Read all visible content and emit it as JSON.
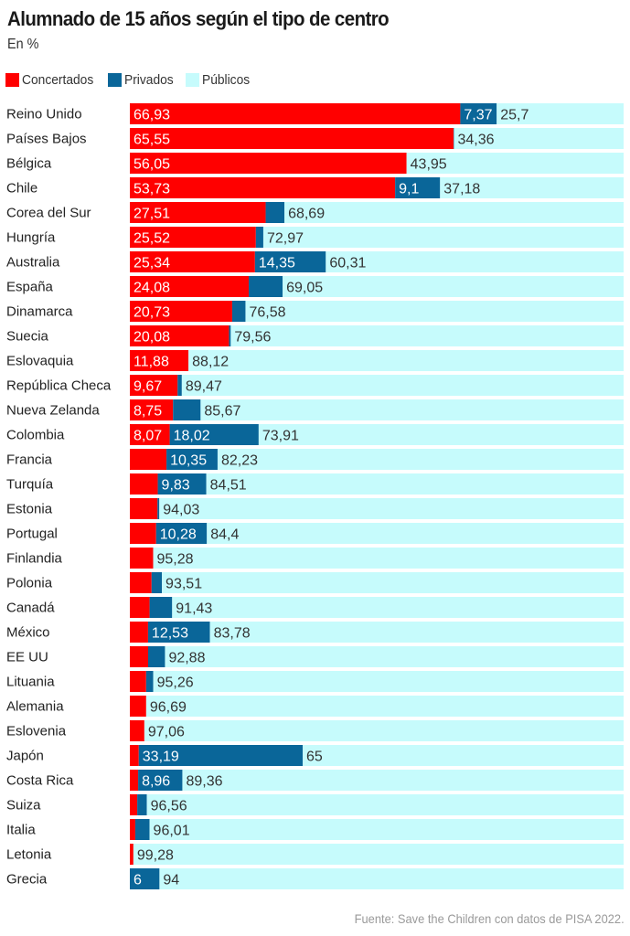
{
  "colors": {
    "concertados": "#ff0000",
    "privados": "#0a6699",
    "publicos": "#c6fbfc",
    "row_label": "#222222",
    "value_on_dark": "#ffffff",
    "value_on_light": "#333333"
  },
  "chart_data": {
    "type": "bar",
    "orientation": "horizontal",
    "stacked": true,
    "normalized_to": 100,
    "title": "Alumnado de 15 años según el tipo de centro",
    "subtitle": "En %",
    "xlabel": "",
    "ylabel": "",
    "xlim": [
      0,
      100
    ],
    "grid": false,
    "legend_position": "top-left",
    "source": "Fuente: Save the Children con datos de PISA 2022.",
    "categories": [
      "Reino Unido",
      "Países Bajos",
      "Bélgica",
      "Chile",
      "Corea del Sur",
      "Hungría",
      "Australia",
      "España",
      "Dinamarca",
      "Suecia",
      "Eslovaquia",
      "República Checa",
      "Nueva Zelanda",
      "Colombia",
      "Francia",
      "Turquía",
      "Estonia",
      "Portugal",
      "Finlandia",
      "Polonia",
      "Canadá",
      "México",
      "EE UU",
      "Lituania",
      "Alemania",
      "Eslovenia",
      "Japón",
      "Costa Rica",
      "Suiza",
      "Italia",
      "Letonia",
      "Grecia"
    ],
    "series": [
      {
        "name": "Concertados",
        "key": "concertados",
        "values": [
          66.93,
          65.55,
          56.05,
          53.73,
          27.51,
          25.52,
          25.34,
          24.08,
          20.73,
          20.08,
          11.88,
          9.67,
          8.75,
          8.07,
          7.42,
          5.66,
          5.6,
          5.32,
          4.72,
          4.4,
          4.0,
          3.69,
          3.7,
          3.3,
          3.31,
          2.94,
          1.81,
          1.68,
          1.5,
          1.1,
          0.72,
          0
        ],
        "labels": [
          "66,93",
          "65,55",
          "56,05",
          "53,73",
          "27,51",
          "25,52",
          "25,34",
          "24,08",
          "20,73",
          "20,08",
          "11,88",
          "9,67",
          "8,75",
          "8,07",
          "",
          "",
          "",
          "",
          "",
          "",
          "",
          "",
          "",
          "",
          "",
          "",
          "",
          "",
          "",
          "",
          "",
          ""
        ]
      },
      {
        "name": "Privados",
        "key": "privados",
        "values": [
          7.37,
          0.09,
          0,
          9.1,
          3.8,
          1.51,
          14.35,
          6.87,
          2.69,
          0.36,
          0,
          0.86,
          5.58,
          18.02,
          10.35,
          9.83,
          0.37,
          10.28,
          0,
          2.09,
          4.57,
          12.53,
          3.42,
          1.44,
          0,
          0,
          33.19,
          8.96,
          1.94,
          2.89,
          0,
          6
        ],
        "labels": [
          "7,37",
          "",
          "",
          "9,1",
          "",
          "",
          "14,35",
          "",
          "",
          "",
          "",
          "",
          "",
          "18,02",
          "10,35",
          "9,83",
          "",
          "10,28",
          "",
          "",
          "",
          "12,53",
          "",
          "",
          "",
          "",
          "33,19",
          "8,96",
          "",
          "",
          "",
          "6"
        ]
      },
      {
        "name": "Públicos",
        "key": "publicos",
        "values": [
          25.7,
          34.36,
          43.95,
          37.18,
          68.69,
          72.97,
          60.31,
          69.05,
          76.58,
          79.56,
          88.12,
          89.47,
          85.67,
          73.91,
          82.23,
          84.51,
          94.03,
          84.4,
          95.28,
          93.51,
          91.43,
          83.78,
          92.88,
          95.26,
          96.69,
          97.06,
          65,
          89.36,
          96.56,
          96.01,
          99.28,
          94
        ],
        "labels": [
          "25,7",
          "34,36",
          "43,95",
          "37,18",
          "68,69",
          "72,97",
          "60,31",
          "69,05",
          "76,58",
          "79,56",
          "88,12",
          "89,47",
          "85,67",
          "73,91",
          "82,23",
          "84,51",
          "94,03",
          "84,4",
          "95,28",
          "93,51",
          "91,43",
          "83,78",
          "92,88",
          "95,26",
          "96,69",
          "97,06",
          "65",
          "89,36",
          "96,56",
          "96,01",
          "99,28",
          "94"
        ]
      }
    ]
  }
}
